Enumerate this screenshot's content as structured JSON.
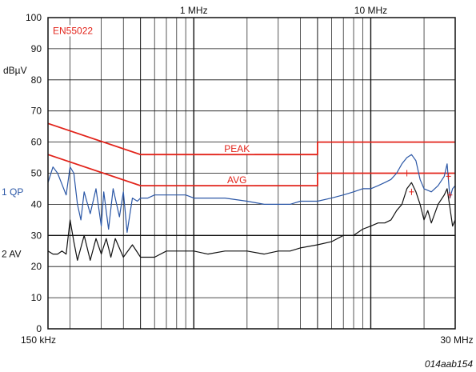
{
  "chart_data": {
    "type": "line",
    "title": "",
    "ylabel": "dBµV",
    "xscale": "log",
    "xlim": [
      0.15,
      30
    ],
    "ylim": [
      0,
      100
    ],
    "y_ticks": [
      0,
      10,
      20,
      30,
      40,
      50,
      60,
      70,
      80,
      90,
      100
    ],
    "x_tick_labels": [
      {
        "x": 0.15,
        "label": "150 kHz",
        "position": "bottom"
      },
      {
        "x": 30,
        "label": "30 MHz",
        "position": "bottom"
      },
      {
        "x": 1,
        "label": "1 MHz",
        "position": "top"
      },
      {
        "x": 10,
        "label": "10 MHz",
        "position": "top"
      }
    ],
    "grid": true,
    "standard_label": "EN55022",
    "figure_id": "014aab154",
    "limit_lines": [
      {
        "name": "PEAK",
        "color": "#e2231a",
        "x": [
          0.15,
          0.5,
          0.5,
          5,
          5,
          30
        ],
        "y": [
          66,
          56,
          56,
          56,
          60,
          60
        ]
      },
      {
        "name": "AVG",
        "color": "#e2231a",
        "x": [
          0.15,
          0.5,
          0.5,
          5,
          5,
          30
        ],
        "y": [
          56,
          46,
          46,
          46,
          50,
          50
        ]
      }
    ],
    "series": [
      {
        "name": "1 QP",
        "color": "#2b57a6",
        "x": [
          0.15,
          0.16,
          0.17,
          0.19,
          0.2,
          0.21,
          0.22,
          0.23,
          0.24,
          0.26,
          0.28,
          0.3,
          0.31,
          0.33,
          0.35,
          0.38,
          0.4,
          0.42,
          0.45,
          0.48,
          0.5,
          0.55,
          0.6,
          0.7,
          0.8,
          0.9,
          1.0,
          1.2,
          1.5,
          2.0,
          2.5,
          3.0,
          3.5,
          4.0,
          5.0,
          6.0,
          7.0,
          8.0,
          9.0,
          10.0,
          11.0,
          12.0,
          13.0,
          14.0,
          15.0,
          16.0,
          17.0,
          18.0,
          19.0,
          20.0,
          22.0,
          24.0,
          26.0,
          27.0,
          28.0,
          29.0,
          30.0
        ],
        "y": [
          47,
          52,
          50,
          43,
          52,
          50,
          40,
          35,
          44,
          37,
          45,
          33,
          44,
          32,
          45,
          36,
          44,
          31,
          42,
          41,
          42,
          42,
          43,
          43,
          43,
          43,
          42,
          42,
          42,
          41,
          40,
          40,
          40,
          41,
          41,
          42,
          43,
          44,
          45,
          45,
          46,
          47,
          48,
          50,
          53,
          55,
          56,
          54,
          48,
          45,
          44,
          46,
          49,
          53,
          42,
          45,
          46
        ]
      },
      {
        "name": "2 AV",
        "color": "#111111",
        "x": [
          0.15,
          0.16,
          0.17,
          0.18,
          0.19,
          0.2,
          0.21,
          0.22,
          0.24,
          0.26,
          0.28,
          0.3,
          0.32,
          0.34,
          0.36,
          0.4,
          0.45,
          0.5,
          0.6,
          0.7,
          0.8,
          0.9,
          1.0,
          1.2,
          1.5,
          2.0,
          2.5,
          3.0,
          3.5,
          4.0,
          5.0,
          6.0,
          7.0,
          8.0,
          9.0,
          10.0,
          11.0,
          12.0,
          13.0,
          14.0,
          15.0,
          16.0,
          17.0,
          18.0,
          19.0,
          20.0,
          21.0,
          22.0,
          24.0,
          26.0,
          27.0,
          28.0,
          29.0,
          30.0
        ],
        "y": [
          25,
          24,
          24,
          25,
          24,
          35,
          28,
          22,
          30,
          22,
          29,
          24,
          29,
          23,
          29,
          23,
          27,
          23,
          23,
          25,
          25,
          25,
          25,
          24,
          25,
          25,
          24,
          25,
          25,
          26,
          27,
          28,
          30,
          30,
          32,
          33,
          34,
          34,
          35,
          38,
          40,
          45,
          47,
          44,
          40,
          35,
          38,
          34,
          40,
          43,
          45,
          39,
          33,
          35
        ]
      }
    ]
  }
}
